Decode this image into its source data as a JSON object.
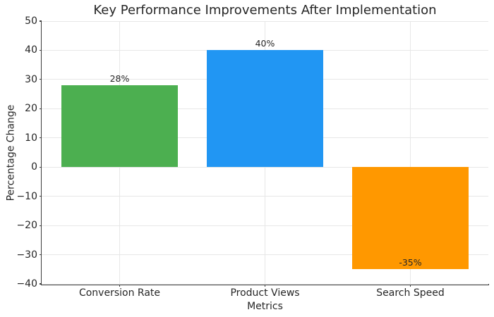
{
  "chart_data": {
    "type": "bar",
    "title": "Key Performance Improvements After Implementation",
    "xlabel": "Metrics",
    "ylabel": "Percentage Change",
    "categories": [
      "Conversion Rate",
      "Product Views",
      "Search Speed"
    ],
    "values": [
      28,
      40,
      -35
    ],
    "bar_value_labels": [
      "28%",
      "40%",
      "-35%"
    ],
    "bar_colors": [
      "#4caf50",
      "#2196f3",
      "#ff9800"
    ],
    "ylim": [
      -40,
      50
    ],
    "ytick_values": [
      50,
      40,
      30,
      20,
      10,
      0,
      -10,
      -20,
      -30,
      -40
    ],
    "ytick_labels": [
      "50",
      "40",
      "30",
      "20",
      "10",
      "0",
      "−10",
      "−20",
      "−30",
      "−40"
    ],
    "grid": "both",
    "legend": "none",
    "colors": {
      "grid": "#e7e7e7",
      "axis": "#3c3c3c",
      "text": "#262626",
      "background": "#ffffff"
    }
  }
}
